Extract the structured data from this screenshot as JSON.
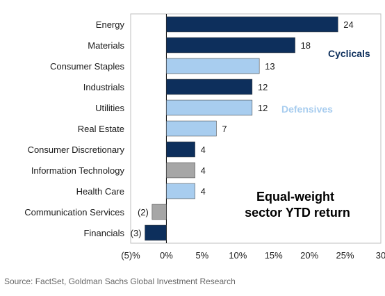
{
  "chart_data": {
    "type": "bar",
    "orientation": "horizontal",
    "categories": [
      "Energy",
      "Materials",
      "Consumer Staples",
      "Industrials",
      "Utilities",
      "Real Estate",
      "Consumer Discretionary",
      "Information Technology",
      "Health Care",
      "Communication Services",
      "Financials"
    ],
    "values": [
      24,
      18,
      13,
      12,
      12,
      7,
      4,
      4,
      4,
      -2,
      -3
    ],
    "data_labels": [
      "24",
      "18",
      "13",
      "12",
      "12",
      "7",
      "4",
      "4",
      "4",
      "(2)",
      "(3)"
    ],
    "groups": [
      "Cyclicals",
      "Cyclicals",
      "Defensives",
      "Cyclicals",
      "Defensives",
      "Defensives",
      "Cyclicals",
      "Other",
      "Defensives",
      "Other",
      "Cyclicals"
    ],
    "group_colors": {
      "Cyclicals": "#0d2f5c",
      "Defensives": "#a8cdef",
      "Other": "#a6a6a6"
    },
    "xlim": [
      -5,
      30
    ],
    "x_ticks": [
      -5,
      0,
      5,
      10,
      15,
      20,
      25,
      30
    ],
    "x_tick_labels": [
      "(5)%",
      "0%",
      "5%",
      "10%",
      "15%",
      "20%",
      "25%",
      "30"
    ],
    "annotations": {
      "cyclicals": "Cyclicals",
      "defensives": "Defensives"
    },
    "title_line1": "Equal-weight",
    "title_line2": "sector YTD return",
    "grid": false
  },
  "source": "Source: FactSet, Goldman Sachs Global Investment Research"
}
